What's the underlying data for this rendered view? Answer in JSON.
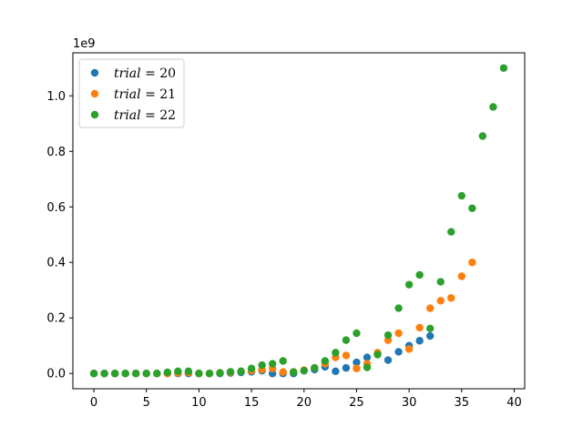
{
  "chart_data": {
    "type": "scatter",
    "title": "",
    "xlabel": "",
    "ylabel": "",
    "y_offset_label": "1e9",
    "xlim": [
      -2,
      41
    ],
    "ylim": [
      -0.055,
      1.155
    ],
    "y_multiplier": 1000000000,
    "xticks": [
      0,
      5,
      10,
      15,
      20,
      25,
      30,
      35,
      40
    ],
    "yticks": [
      0.0,
      0.2,
      0.4,
      0.6,
      0.8,
      1.0
    ],
    "xtick_labels": [
      "0",
      "5",
      "10",
      "15",
      "20",
      "25",
      "30",
      "35",
      "40"
    ],
    "ytick_labels": [
      "0.0",
      "0.2",
      "0.4",
      "0.6",
      "0.8",
      "1.0"
    ],
    "grid": false,
    "legend_position": "top-left",
    "series": [
      {
        "name": "trial = 20",
        "label_var": "trial",
        "label_value": "20",
        "color": "#1f77b4",
        "points": [
          [
            0,
            0.0
          ],
          [
            1,
            0.0
          ],
          [
            2,
            0.0
          ],
          [
            3,
            0.0
          ],
          [
            4,
            0.0
          ],
          [
            5,
            0.0
          ],
          [
            6,
            0.0
          ],
          [
            7,
            0.0
          ],
          [
            8,
            0.0
          ],
          [
            9,
            0.0
          ],
          [
            10,
            0.0
          ],
          [
            11,
            0.0
          ],
          [
            12,
            0.0
          ],
          [
            13,
            0.002
          ],
          [
            14,
            0.004
          ],
          [
            15,
            0.006
          ],
          [
            16,
            0.01
          ],
          [
            17,
            0.0
          ],
          [
            18,
            0.0
          ],
          [
            19,
            0.0
          ],
          [
            20,
            0.01
          ],
          [
            21,
            0.014
          ],
          [
            22,
            0.024
          ],
          [
            23,
            0.008
          ],
          [
            24,
            0.02
          ],
          [
            25,
            0.04
          ],
          [
            26,
            0.058
          ],
          [
            27,
            0.07
          ],
          [
            28,
            0.048
          ],
          [
            29,
            0.078
          ],
          [
            30,
            0.1
          ],
          [
            31,
            0.118
          ],
          [
            32,
            0.135
          ]
        ]
      },
      {
        "name": "trial = 21",
        "label_var": "trial",
        "label_value": "21",
        "color": "#ff7f0e",
        "points": [
          [
            0,
            0.0
          ],
          [
            1,
            0.0
          ],
          [
            2,
            0.0
          ],
          [
            3,
            0.0
          ],
          [
            4,
            0.0
          ],
          [
            5,
            0.0
          ],
          [
            6,
            0.0
          ],
          [
            7,
            0.0
          ],
          [
            8,
            0.002
          ],
          [
            9,
            0.003
          ],
          [
            10,
            0.0
          ],
          [
            11,
            0.0
          ],
          [
            12,
            0.002
          ],
          [
            13,
            0.004
          ],
          [
            14,
            0.008
          ],
          [
            15,
            0.01
          ],
          [
            16,
            0.014
          ],
          [
            17,
            0.018
          ],
          [
            18,
            0.005
          ],
          [
            19,
            0.006
          ],
          [
            20,
            0.012
          ],
          [
            21,
            0.02
          ],
          [
            22,
            0.035
          ],
          [
            23,
            0.058
          ],
          [
            24,
            0.065
          ],
          [
            25,
            0.018
          ],
          [
            26,
            0.035
          ],
          [
            27,
            0.075
          ],
          [
            28,
            0.12
          ],
          [
            29,
            0.145
          ],
          [
            30,
            0.088
          ],
          [
            31,
            0.165
          ],
          [
            32,
            0.235
          ],
          [
            33,
            0.262
          ],
          [
            34,
            0.272
          ],
          [
            35,
            0.35
          ],
          [
            36,
            0.4
          ]
        ]
      },
      {
        "name": "trial = 22",
        "label_var": "trial",
        "label_value": "22",
        "color": "#2ca02c",
        "points": [
          [
            0,
            0.0
          ],
          [
            1,
            0.0
          ],
          [
            2,
            0.0
          ],
          [
            3,
            0.0
          ],
          [
            4,
            0.0
          ],
          [
            5,
            0.0
          ],
          [
            6,
            0.0
          ],
          [
            7,
            0.004
          ],
          [
            8,
            0.008
          ],
          [
            9,
            0.008
          ],
          [
            10,
            0.0
          ],
          [
            11,
            0.0
          ],
          [
            12,
            0.002
          ],
          [
            13,
            0.006
          ],
          [
            14,
            0.008
          ],
          [
            15,
            0.018
          ],
          [
            16,
            0.03
          ],
          [
            17,
            0.035
          ],
          [
            18,
            0.045
          ],
          [
            19,
            0.005
          ],
          [
            20,
            0.01
          ],
          [
            21,
            0.02
          ],
          [
            22,
            0.045
          ],
          [
            23,
            0.075
          ],
          [
            24,
            0.12
          ],
          [
            25,
            0.145
          ],
          [
            26,
            0.022
          ],
          [
            27,
            0.068
          ],
          [
            28,
            0.138
          ],
          [
            29,
            0.235
          ],
          [
            30,
            0.32
          ],
          [
            31,
            0.355
          ],
          [
            32,
            0.162
          ],
          [
            33,
            0.33
          ],
          [
            34,
            0.51
          ],
          [
            35,
            0.64
          ],
          [
            36,
            0.595
          ],
          [
            37,
            0.855
          ],
          [
            38,
            0.96
          ],
          [
            39,
            1.1
          ]
        ]
      }
    ]
  }
}
